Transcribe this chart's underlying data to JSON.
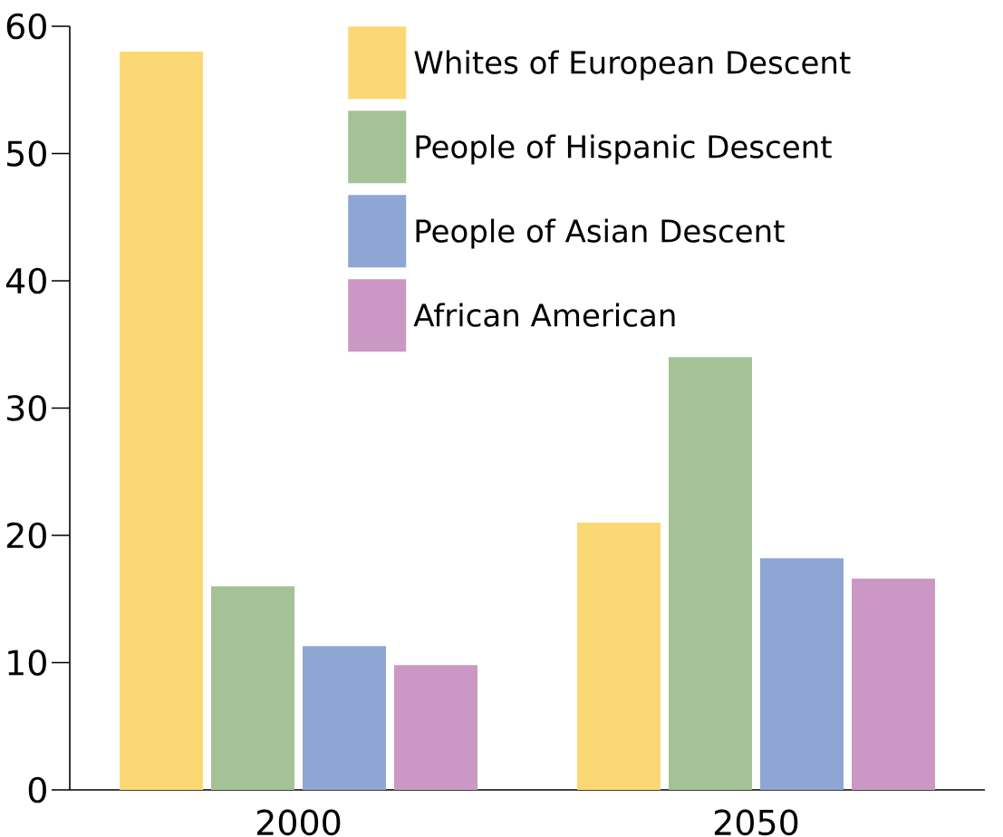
{
  "chart_data": {
    "type": "bar",
    "categories": [
      "2000",
      "2050"
    ],
    "series": [
      {
        "name": "Whites of European Descent",
        "color": "#fcd874",
        "values": [
          58,
          21
        ]
      },
      {
        "name": "People of Hispanic Descent",
        "color": "#a5c196",
        "values": [
          16,
          34
        ]
      },
      {
        "name": "People of Asian Descent",
        "color": "#8fa6d4",
        "values": [
          11.3,
          18.2
        ]
      },
      {
        "name": "African American",
        "color": "#cb97c5",
        "values": [
          9.8,
          16.6
        ]
      }
    ],
    "ylim": [
      0,
      60
    ],
    "yticks": [
      0,
      10,
      20,
      30,
      40,
      50,
      60
    ],
    "legend": "top right"
  }
}
